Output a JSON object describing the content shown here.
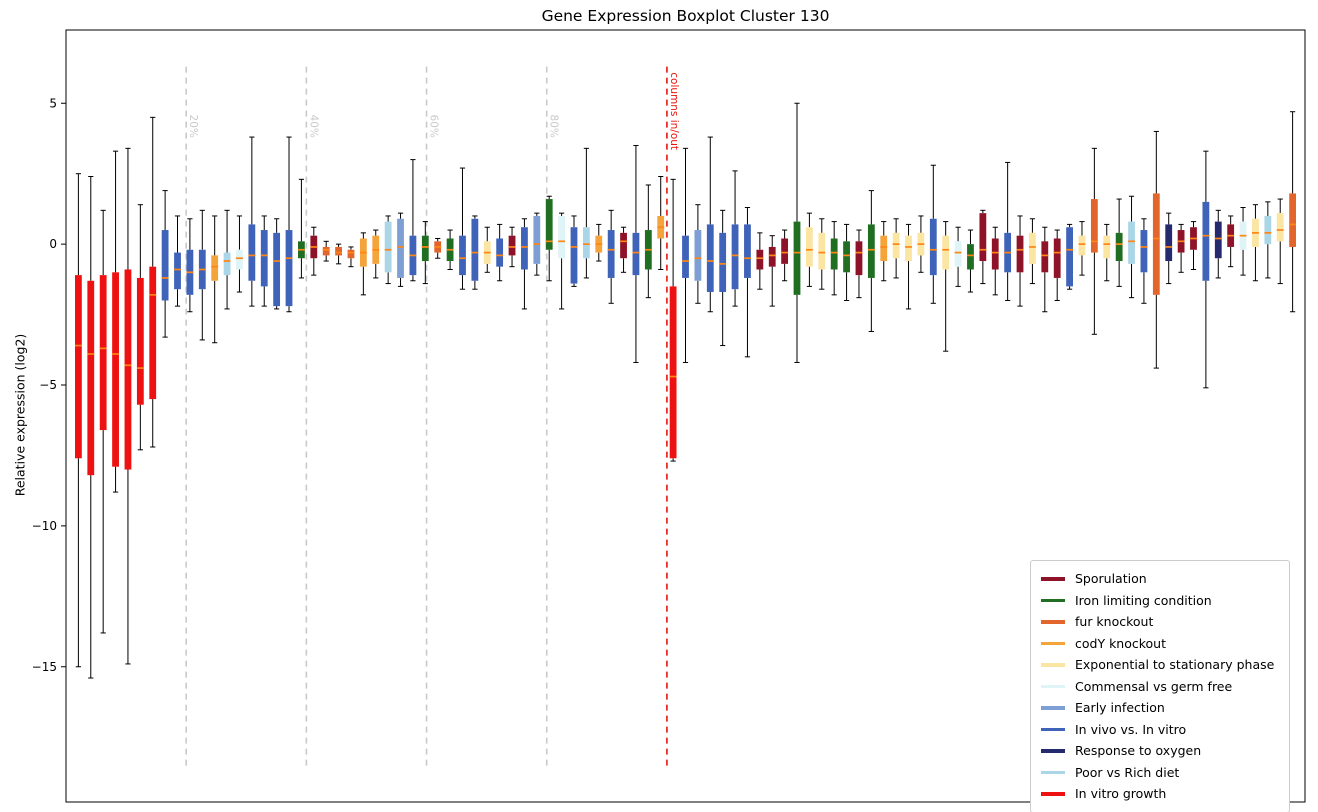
{
  "chart_data": {
    "type": "boxplot",
    "title": "Gene Expression Boxplot Cluster 130",
    "ylabel": "Relative expression (log2)",
    "xlabel": "",
    "ylim": [
      -19.8,
      7.6
    ],
    "yticks": [
      5,
      0,
      -5,
      -10,
      -15
    ],
    "grid": false,
    "legend_position": "lower right",
    "median_color": "#ff8514",
    "whisker_color": "#000000",
    "ref_line_extent": [
      6.3,
      -18.6
    ],
    "categories": [
      {
        "name": "Sporulation",
        "color": "#8e1328"
      },
      {
        "name": "Iron limiting condition",
        "color": "#1f6e22"
      },
      {
        "name": "fur knockout",
        "color": "#e2662c"
      },
      {
        "name": "codY knockout",
        "color": "#f5a43c"
      },
      {
        "name": "Exponential to stationary phase",
        "color": "#fae5a3"
      },
      {
        "name": "Commensal vs germ free",
        "color": "#dff4f6"
      },
      {
        "name": "Early infection",
        "color": "#7d9fd3"
      },
      {
        "name": "In vivo vs. In vitro",
        "color": "#3e63b8"
      },
      {
        "name": "Response to oxygen",
        "color": "#242a6d"
      },
      {
        "name": "Poor vs Rich diet",
        "color": "#aad6e8"
      },
      {
        "name": "In vitro growth",
        "color": "#ee1111"
      }
    ],
    "ref_lines": [
      {
        "label": "20%",
        "pos": 9.7,
        "color": "#c9c9c9"
      },
      {
        "label": "40%",
        "pos": 19.4,
        "color": "#c9c9c9"
      },
      {
        "label": "60%",
        "pos": 29.1,
        "color": "#c9c9c9"
      },
      {
        "label": "80%",
        "pos": 38.8,
        "color": "#c9c9c9"
      },
      {
        "label": "columns in/out",
        "pos": 48.5,
        "color": "#e8150d"
      }
    ],
    "box_format": [
      "category_index",
      "whisker_low",
      "q1",
      "median",
      "q3",
      "whisker_high"
    ],
    "boxes": [
      [
        10,
        -15.0,
        -7.6,
        -3.6,
        -1.1,
        2.5
      ],
      [
        10,
        -15.4,
        -8.2,
        -3.9,
        -1.3,
        2.4
      ],
      [
        10,
        -13.8,
        -6.6,
        -3.7,
        -1.1,
        1.2
      ],
      [
        10,
        -8.8,
        -7.9,
        -3.9,
        -1.0,
        3.3
      ],
      [
        10,
        -14.9,
        -8.0,
        -4.3,
        -0.9,
        3.4
      ],
      [
        10,
        -7.3,
        -5.7,
        -4.4,
        -1.2,
        1.4
      ],
      [
        10,
        -7.2,
        -5.5,
        -1.8,
        -0.8,
        4.5
      ],
      [
        7,
        -3.3,
        -2.0,
        -1.2,
        0.5,
        1.9
      ],
      [
        7,
        -2.2,
        -1.6,
        -0.9,
        -0.3,
        1.0
      ],
      [
        7,
        -2.4,
        -1.8,
        -1.0,
        -0.2,
        0.9
      ],
      [
        7,
        -3.4,
        -1.6,
        -0.9,
        -0.2,
        1.2
      ],
      [
        3,
        -3.5,
        -1.3,
        -0.8,
        -0.4,
        1.0
      ],
      [
        9,
        -2.3,
        -1.1,
        -0.6,
        -0.3,
        1.2
      ],
      [
        5,
        -1.7,
        -0.9,
        -0.5,
        -0.2,
        1.0
      ],
      [
        7,
        -2.2,
        -1.3,
        -0.4,
        0.7,
        3.8
      ],
      [
        7,
        -2.2,
        -1.5,
        -0.4,
        0.5,
        1.0
      ],
      [
        7,
        -2.3,
        -2.2,
        -0.6,
        0.4,
        0.9
      ],
      [
        7,
        -2.4,
        -2.2,
        -0.5,
        0.5,
        3.8
      ],
      [
        1,
        -1.2,
        -0.5,
        -0.2,
        0.1,
        2.3
      ],
      [
        0,
        -1.1,
        -0.5,
        -0.1,
        0.3,
        0.6
      ],
      [
        2,
        -0.6,
        -0.4,
        -0.2,
        -0.1,
        0.1
      ],
      [
        2,
        -0.7,
        -0.4,
        -0.3,
        -0.1,
        0.0
      ],
      [
        2,
        -0.8,
        -0.5,
        -0.3,
        -0.2,
        -0.1
      ],
      [
        3,
        -1.8,
        -0.8,
        -0.3,
        0.2,
        0.4
      ],
      [
        3,
        -1.2,
        -0.7,
        -0.2,
        0.3,
        0.5
      ],
      [
        9,
        -1.4,
        -1.0,
        -0.2,
        0.8,
        1.0
      ],
      [
        6,
        -1.5,
        -1.2,
        -0.1,
        0.9,
        1.1
      ],
      [
        7,
        -1.3,
        -1.1,
        -0.4,
        0.3,
        3.0
      ],
      [
        1,
        -1.4,
        -0.6,
        -0.1,
        0.3,
        0.8
      ],
      [
        2,
        -0.5,
        -0.3,
        -0.1,
        0.1,
        0.2
      ],
      [
        1,
        -0.9,
        -0.6,
        -0.2,
        0.2,
        0.5
      ],
      [
        7,
        -1.6,
        -1.1,
        -0.5,
        0.3,
        2.7
      ],
      [
        7,
        -1.6,
        -1.3,
        -0.3,
        0.9,
        1.0
      ],
      [
        4,
        -1.0,
        -0.7,
        -0.3,
        0.1,
        0.6
      ],
      [
        7,
        -1.3,
        -0.8,
        -0.4,
        0.2,
        0.7
      ],
      [
        0,
        -0.8,
        -0.4,
        -0.1,
        0.3,
        0.6
      ],
      [
        7,
        -2.3,
        -0.9,
        -0.1,
        0.6,
        0.9
      ],
      [
        6,
        -1.1,
        -0.7,
        0.0,
        1.0,
        1.1
      ],
      [
        1,
        -1.3,
        -0.2,
        0.1,
        1.6,
        1.7
      ],
      [
        5,
        -2.3,
        -0.5,
        0.1,
        1.0,
        1.1
      ],
      [
        7,
        -1.5,
        -1.4,
        -0.1,
        0.6,
        1.0
      ],
      [
        9,
        -1.2,
        -0.5,
        0.0,
        0.6,
        3.4
      ],
      [
        3,
        -0.6,
        -0.3,
        0.0,
        0.3,
        0.7
      ],
      [
        7,
        -2.1,
        -1.2,
        -0.2,
        0.5,
        1.2
      ],
      [
        0,
        -1.0,
        -0.5,
        0.1,
        0.4,
        0.6
      ],
      [
        7,
        -4.2,
        -1.1,
        -0.3,
        0.4,
        3.5
      ],
      [
        1,
        -1.9,
        -0.9,
        -0.2,
        0.5,
        2.1
      ],
      [
        3,
        -0.9,
        0.2,
        0.6,
        1.0,
        2.4
      ],
      [
        10,
        -7.7,
        -7.6,
        -4.7,
        -1.5,
        2.3
      ],
      [
        7,
        -4.2,
        -1.2,
        -0.6,
        0.3,
        3.4
      ],
      [
        6,
        -2.1,
        -1.3,
        -0.5,
        0.5,
        1.4
      ],
      [
        7,
        -2.4,
        -1.7,
        -0.6,
        0.7,
        3.8
      ],
      [
        7,
        -3.6,
        -1.7,
        -0.7,
        0.4,
        1.2
      ],
      [
        7,
        -2.2,
        -1.6,
        -0.4,
        0.7,
        2.6
      ],
      [
        7,
        -4.0,
        -1.2,
        -0.5,
        0.7,
        1.3
      ],
      [
        0,
        -1.6,
        -0.9,
        -0.5,
        -0.2,
        0.4
      ],
      [
        0,
        -2.2,
        -0.8,
        -0.4,
        -0.1,
        0.3
      ],
      [
        0,
        -1.3,
        -0.7,
        -0.3,
        0.2,
        0.5
      ],
      [
        1,
        -4.2,
        -1.8,
        -0.3,
        0.8,
        5.0
      ],
      [
        4,
        -1.5,
        -0.8,
        -0.2,
        0.6,
        1.1
      ],
      [
        4,
        -1.6,
        -0.9,
        -0.3,
        0.4,
        0.9
      ],
      [
        1,
        -1.8,
        -0.9,
        -0.3,
        0.2,
        0.8
      ],
      [
        1,
        -2.0,
        -1.0,
        -0.4,
        0.1,
        0.7
      ],
      [
        0,
        -1.9,
        -1.1,
        -0.3,
        0.1,
        0.5
      ],
      [
        1,
        -3.1,
        -1.2,
        -0.2,
        0.7,
        1.9
      ],
      [
        3,
        -1.3,
        -0.6,
        -0.1,
        0.3,
        0.8
      ],
      [
        4,
        -1.2,
        -0.5,
        0.0,
        0.4,
        0.9
      ],
      [
        4,
        -2.3,
        -0.6,
        -0.1,
        0.3,
        0.7
      ],
      [
        4,
        -1.0,
        -0.4,
        0.0,
        0.4,
        1.0
      ],
      [
        7,
        -2.1,
        -1.1,
        -0.2,
        0.9,
        2.8
      ],
      [
        4,
        -3.8,
        -0.9,
        -0.2,
        0.3,
        0.8
      ],
      [
        5,
        -1.5,
        -0.8,
        -0.3,
        0.1,
        0.6
      ],
      [
        1,
        -1.7,
        -0.9,
        -0.4,
        0.0,
        0.5
      ],
      [
        0,
        -1.4,
        -0.6,
        -0.2,
        1.1,
        1.2
      ],
      [
        0,
        -1.8,
        -0.9,
        -0.3,
        0.2,
        0.6
      ],
      [
        7,
        -2.0,
        -1.0,
        -0.3,
        0.4,
        2.9
      ],
      [
        0,
        -2.2,
        -1.0,
        -0.2,
        0.3,
        1.0
      ],
      [
        4,
        -1.4,
        -0.7,
        -0.1,
        0.4,
        0.9
      ],
      [
        0,
        -2.4,
        -1.0,
        -0.4,
        0.1,
        0.6
      ],
      [
        0,
        -2.0,
        -1.2,
        -0.3,
        0.2,
        0.5
      ],
      [
        7,
        -1.6,
        -1.5,
        -0.2,
        0.6,
        0.7
      ],
      [
        4,
        -1.1,
        -0.4,
        0.0,
        0.3,
        0.8
      ],
      [
        2,
        -3.2,
        -0.3,
        0.1,
        1.6,
        3.4
      ],
      [
        4,
        -1.3,
        -0.5,
        0.0,
        0.3,
        0.7
      ],
      [
        1,
        -1.5,
        -0.6,
        0.0,
        0.4,
        1.6
      ],
      [
        9,
        -1.9,
        -0.7,
        0.1,
        0.8,
        1.7
      ],
      [
        7,
        -2.1,
        -1.0,
        -0.1,
        0.5,
        0.9
      ],
      [
        2,
        -4.4,
        -1.8,
        0.2,
        1.8,
        4.0
      ],
      [
        8,
        -1.4,
        -0.6,
        -0.1,
        0.7,
        1.1
      ],
      [
        0,
        -1.0,
        -0.3,
        0.1,
        0.5,
        0.7
      ],
      [
        0,
        -0.9,
        -0.2,
        0.2,
        0.6,
        0.8
      ],
      [
        7,
        -5.1,
        -1.3,
        0.3,
        1.5,
        3.3
      ],
      [
        8,
        -1.2,
        -0.5,
        0.2,
        0.8,
        1.2
      ],
      [
        0,
        -0.8,
        -0.1,
        0.3,
        0.7,
        1.0
      ],
      [
        5,
        -1.1,
        -0.2,
        0.3,
        0.8,
        1.3
      ],
      [
        4,
        -1.3,
        -0.1,
        0.4,
        0.9,
        1.4
      ],
      [
        9,
        -1.2,
        0.0,
        0.4,
        1.0,
        1.5
      ],
      [
        4,
        -1.4,
        0.1,
        0.5,
        1.1,
        1.6
      ],
      [
        2,
        -2.4,
        -0.1,
        0.7,
        1.8,
        4.7
      ]
    ]
  }
}
